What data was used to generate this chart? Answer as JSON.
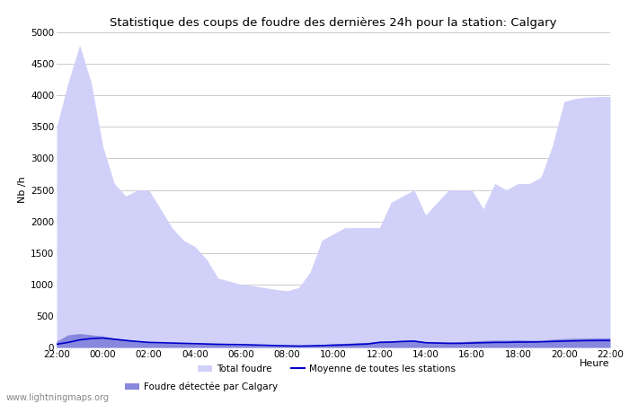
{
  "title": "Statistique des coups de foudre des dernières 24h pour la station: Calgary",
  "xlabel": "Heure",
  "ylabel": "Nb /h",
  "xlim": [
    0,
    24
  ],
  "ylim": [
    0,
    5000
  ],
  "yticks": [
    0,
    500,
    1000,
    1500,
    2000,
    2500,
    3000,
    3500,
    4000,
    4500,
    5000
  ],
  "xtick_labels": [
    "22:00",
    "00:00",
    "02:00",
    "04:00",
    "06:00",
    "08:00",
    "10:00",
    "12:00",
    "14:00",
    "16:00",
    "18:00",
    "20:00",
    "22:00"
  ],
  "watermark": "www.lightningmaps.org",
  "total_foudre_color": "#d0d0f8",
  "calgary_color": "#8888dd",
  "moyenne_color": "#0000cc",
  "background_color": "#ffffff",
  "grid_color": "#cccccc",
  "x": [
    0,
    0.5,
    1,
    1.5,
    2,
    2.5,
    3,
    3.5,
    4,
    4.5,
    5,
    5.5,
    6,
    6.5,
    7,
    7.5,
    8,
    8.5,
    9,
    9.5,
    10,
    10.5,
    11,
    11.5,
    12,
    12.5,
    13,
    13.5,
    14,
    14.5,
    15,
    15.5,
    16,
    16.5,
    17,
    17.5,
    18,
    18.5,
    19,
    19.5,
    20,
    20.5,
    21,
    21.5,
    22,
    22.5,
    23,
    23.5,
    24
  ],
  "total_foudre": [
    3500,
    4200,
    4800,
    4200,
    3200,
    2600,
    2400,
    2500,
    2500,
    2200,
    1900,
    1700,
    1600,
    1400,
    1100,
    1050,
    1000,
    980,
    950,
    920,
    900,
    950,
    1200,
    1700,
    1800,
    1900,
    1900,
    1900,
    1900,
    2300,
    2400,
    2500,
    2100,
    2300,
    2500,
    2500,
    2500,
    2200,
    2600,
    2500,
    2600,
    2600,
    2700,
    3200,
    3900,
    3950,
    3970,
    3980,
    3980
  ],
  "calgary_foudre": [
    100,
    200,
    220,
    200,
    180,
    150,
    130,
    100,
    80,
    70,
    70,
    65,
    60,
    55,
    50,
    45,
    40,
    35,
    30,
    28,
    25,
    28,
    35,
    45,
    60,
    65,
    75,
    80,
    100,
    105,
    110,
    115,
    90,
    85,
    85,
    90,
    100,
    110,
    115,
    115,
    120,
    115,
    110,
    130,
    140,
    145,
    148,
    150,
    150
  ],
  "moyenne": [
    50,
    80,
    120,
    140,
    150,
    130,
    110,
    95,
    80,
    75,
    70,
    65,
    60,
    55,
    50,
    47,
    45,
    40,
    35,
    30,
    25,
    22,
    25,
    30,
    35,
    40,
    48,
    55,
    80,
    85,
    95,
    100,
    75,
    70,
    65,
    65,
    70,
    75,
    80,
    80,
    85,
    85,
    90,
    95,
    100,
    105,
    108,
    110,
    110
  ]
}
